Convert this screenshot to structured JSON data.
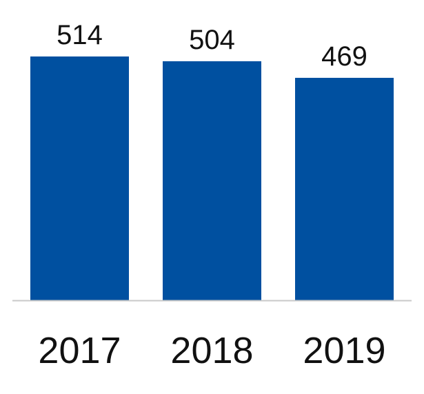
{
  "chart_data": {
    "type": "bar",
    "categories": [
      "2017",
      "2018",
      "2019"
    ],
    "values": [
      514,
      504,
      469
    ],
    "title": "",
    "xlabel": "",
    "ylabel": "",
    "ylim": [
      0,
      514
    ],
    "grid": false,
    "data_labels": [
      "514",
      "504",
      "469"
    ],
    "bar_color": "#0050A0",
    "axis_color": "#c8c8c8"
  }
}
